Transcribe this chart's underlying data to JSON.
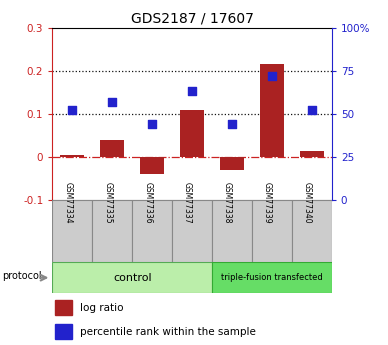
{
  "title": "GDS2187 / 17607",
  "samples": [
    "GSM77334",
    "GSM77335",
    "GSM77336",
    "GSM77337",
    "GSM77338",
    "GSM77339",
    "GSM77340"
  ],
  "log_ratio": [
    0.005,
    0.04,
    -0.04,
    0.11,
    -0.03,
    0.215,
    0.015
  ],
  "percentile_rank": [
    52,
    57,
    44,
    63,
    44,
    72,
    52
  ],
  "left_ylim": [
    -0.1,
    0.3
  ],
  "right_ylim": [
    0,
    100
  ],
  "left_yticks": [
    -0.1,
    0.0,
    0.1,
    0.2,
    0.3
  ],
  "left_yticklabels": [
    "-0.1",
    "0",
    "0.1",
    "0.2",
    "0.3"
  ],
  "right_yticks": [
    0,
    25,
    50,
    75,
    100
  ],
  "right_yticklabels": [
    "0",
    "25",
    "50",
    "75",
    "100%"
  ],
  "hline_y_left": [
    0.0,
    0.1,
    0.2
  ],
  "hline_styles": [
    "dashdot",
    "dotted",
    "dotted"
  ],
  "hline_colors": [
    "#cc2222",
    "#111111",
    "#111111"
  ],
  "bar_color": "#aa2222",
  "dot_color": "#2222cc",
  "left_tick_color": "#cc2222",
  "right_tick_color": "#2222cc",
  "n_control": 4,
  "control_label": "control",
  "treatment_label": "triple-fusion transfected",
  "control_color": "#bbeeaa",
  "treatment_color": "#66dd66",
  "sample_box_color": "#cccccc",
  "legend_log_ratio": "log ratio",
  "legend_percentile": "percentile rank within the sample",
  "protocol_label": "protocol",
  "bar_width": 0.6,
  "dot_size": 40
}
